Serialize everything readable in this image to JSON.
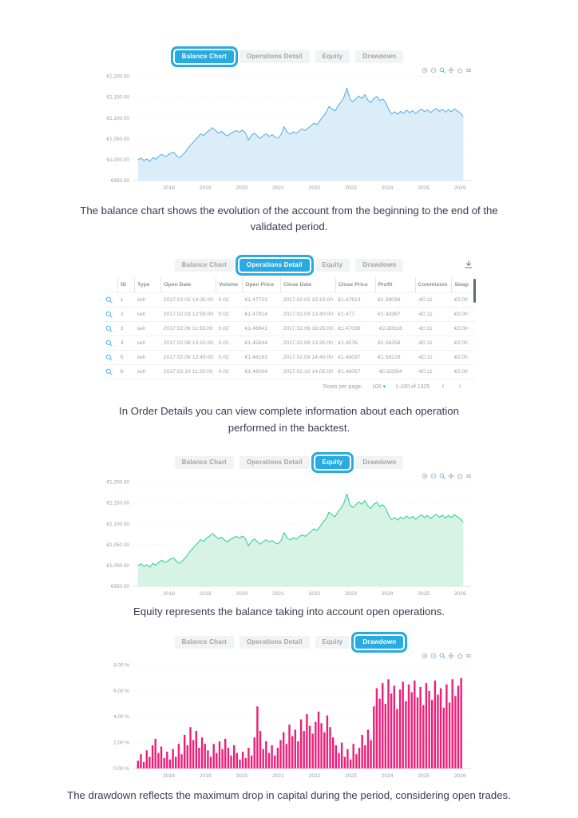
{
  "colors": {
    "accent_blue": "#29abe2",
    "balance_line": "#54aadf",
    "balance_fill": "#daedf9",
    "equity_line": "#2bcb8d",
    "equity_fill": "#d6f3e6",
    "drawdown_bar": "#ed1e79",
    "tab_inactive_bg": "#f2f3f4",
    "tab_inactive_text": "#9fa4a9",
    "caption_text": "#3b3951",
    "grid_line": "#e6e6e6"
  },
  "tabs": {
    "labels": [
      "Balance Chart",
      "Operations Detail",
      "Equity",
      "Drawdown"
    ]
  },
  "modebar": {
    "icons": [
      "zoom-in-icon",
      "zoom-out-icon",
      "magnifier-icon",
      "pan-icon",
      "home-icon",
      "menu-icon"
    ],
    "active": "magnifier-icon"
  },
  "sections": [
    {
      "kind": "chart",
      "chart": "balance",
      "selected_tab": 0,
      "caption": "The balance chart shows the evolution of the account from the beginning to the end of the validated period."
    },
    {
      "kind": "table",
      "selected_tab": 1,
      "caption": "In Order Details you can view complete information about each operation performed in the backtest."
    },
    {
      "kind": "chart",
      "chart": "equity",
      "selected_tab": 2,
      "caption": "Equity represents the balance taking into account open operations."
    },
    {
      "kind": "chart",
      "chart": "drawdown",
      "selected_tab": 3,
      "caption": "The drawdown reflects the maximum drop in capital during the period, considering open trades."
    }
  ],
  "table": {
    "columns": [
      "ID",
      "Type",
      "Open Date",
      "Volume",
      "Open Price",
      "Close Date",
      "Close Price",
      "Profit",
      "Commision",
      "Swap"
    ],
    "rows": [
      [
        "1",
        "sell",
        "2017.02.02 14:35:00",
        "0.02",
        "€1.47723",
        "2017.02.02 15:15:00",
        "€1.47613",
        "€1.38038",
        "-€0.11",
        "€0.00"
      ],
      [
        "2",
        "sell",
        "2017.02.03 12:55:00",
        "0.02",
        "€1.47814",
        "2017.02.03 13:40:00",
        "€1.477",
        "€1.43367",
        "-€0.11",
        "€0.00"
      ],
      [
        "3",
        "sell",
        "2017.02.06 11:55:00",
        "0.02",
        "€1.46841",
        "2017.02.06 18:25:00",
        "€1.47039",
        "-€2.80316",
        "-€0.11",
        "€0.00"
      ],
      [
        "4",
        "sell",
        "2017.02.08 13:15:00",
        "0.02",
        "€1.45844",
        "2017.02.08 13:35:00",
        "€1.4576",
        "€1.04258",
        "-€0.11",
        "€0.00"
      ],
      [
        "5",
        "sell",
        "2017.02.09 12:45:00",
        "0.02",
        "€1.48163",
        "2017.02.09 14:45:00",
        "€1.48037",
        "€1.59228",
        "-€0.11",
        "€0.00"
      ],
      [
        "6",
        "sell",
        "2017.02.10 11:25:00",
        "0.02",
        "€1.48004",
        "2017.02.10 14:05:00",
        "€1.48057",
        "-€0.82594",
        "-€0.11",
        "€0.00"
      ]
    ],
    "row_action_icon": "magnifier-icon",
    "download_icon": "download-icon",
    "pagination": {
      "rows_per_page_label": "Rows per page:",
      "rows_per_page_value": "100",
      "range_label": "1-100 of 1325",
      "prev_icon": "chevron-left-icon",
      "next_icon": "chevron-right-icon"
    }
  },
  "chart_data": [
    {
      "id": "balance",
      "type": "area",
      "title": "Balance Chart",
      "xlabel": "",
      "ylabel": "",
      "line_color": "#54aadf",
      "fill_color": "#daedf9",
      "x_start": 2017.15,
      "x_step": 0.082,
      "values": [
        1000,
        1004,
        998,
        1002,
        996,
        1005,
        1001,
        1008,
        1013,
        1007,
        1011,
        1016,
        1018,
        1009,
        1005,
        1012,
        1020,
        1030,
        1038,
        1046,
        1054,
        1062,
        1058,
        1066,
        1071,
        1077,
        1070,
        1064,
        1068,
        1061,
        1057,
        1063,
        1067,
        1070,
        1066,
        1071,
        1065,
        1047,
        1058,
        1064,
        1057,
        1051,
        1058,
        1062,
        1056,
        1060,
        1054,
        1052,
        1061,
        1079,
        1066,
        1061,
        1067,
        1063,
        1069,
        1074,
        1070,
        1076,
        1082,
        1088,
        1084,
        1094,
        1104,
        1113,
        1128,
        1122,
        1117,
        1129,
        1138,
        1150,
        1172,
        1146,
        1139,
        1146,
        1153,
        1147,
        1156,
        1143,
        1137,
        1147,
        1152,
        1142,
        1146,
        1138,
        1120,
        1110,
        1115,
        1109,
        1116,
        1112,
        1119,
        1113,
        1118,
        1111,
        1117,
        1122,
        1115,
        1120,
        1113,
        1119,
        1123,
        1116,
        1121,
        1114,
        1120,
        1115,
        1122,
        1117,
        1112,
        1104
      ],
      "xlim": [
        2017.0,
        2026.3
      ],
      "ylim": [
        950,
        1205
      ],
      "xticks": [
        2018,
        2019,
        2020,
        2021,
        2022,
        2023,
        2024,
        2025,
        2026
      ],
      "yticks": [
        950,
        1000,
        1050,
        1100,
        1150,
        1200
      ],
      "ytick_labels": [
        "€950.00",
        "€1,000.00",
        "€1,050.00",
        "€1,100.00",
        "€1,150.00",
        "€1,200.00"
      ],
      "grid": true,
      "legend": false
    },
    {
      "id": "equity",
      "type": "area",
      "title": "Equity",
      "xlabel": "",
      "ylabel": "",
      "line_color": "#2bcb8d",
      "fill_color": "#d6f3e6",
      "x_start": 2017.15,
      "x_step": 0.082,
      "values": [
        1000,
        1004,
        998,
        1002,
        996,
        1005,
        1001,
        1008,
        1013,
        1007,
        1011,
        1016,
        1018,
        1009,
        1005,
        1012,
        1020,
        1030,
        1038,
        1046,
        1054,
        1062,
        1058,
        1066,
        1071,
        1077,
        1070,
        1064,
        1068,
        1061,
        1057,
        1063,
        1067,
        1070,
        1066,
        1071,
        1065,
        1047,
        1058,
        1064,
        1057,
        1051,
        1058,
        1062,
        1056,
        1060,
        1054,
        1052,
        1061,
        1079,
        1066,
        1061,
        1067,
        1063,
        1069,
        1074,
        1070,
        1076,
        1082,
        1088,
        1084,
        1094,
        1104,
        1113,
        1128,
        1122,
        1117,
        1129,
        1138,
        1150,
        1172,
        1146,
        1139,
        1146,
        1153,
        1147,
        1156,
        1143,
        1137,
        1147,
        1152,
        1142,
        1146,
        1138,
        1120,
        1110,
        1115,
        1109,
        1116,
        1112,
        1119,
        1113,
        1118,
        1111,
        1117,
        1122,
        1115,
        1120,
        1113,
        1119,
        1123,
        1116,
        1121,
        1114,
        1120,
        1115,
        1122,
        1117,
        1112,
        1104
      ],
      "xlim": [
        2017.0,
        2026.3
      ],
      "ylim": [
        950,
        1205
      ],
      "xticks": [
        2018,
        2019,
        2020,
        2021,
        2022,
        2023,
        2024,
        2025,
        2026
      ],
      "yticks": [
        950,
        1000,
        1050,
        1100,
        1150,
        1200
      ],
      "ytick_labels": [
        "€950.00",
        "€1,000.00",
        "€1,050.00",
        "€1,100.00",
        "€1,150.00",
        "€1,200.00"
      ],
      "grid": true,
      "legend": false
    },
    {
      "id": "drawdown",
      "type": "bar",
      "title": "Drawdown",
      "xlabel": "",
      "ylabel": "",
      "bar_color": "#ed1e79",
      "x_start": 2017.15,
      "x_step": 0.08,
      "values": [
        0.6,
        1.1,
        0.5,
        1.4,
        0.9,
        1.8,
        2.3,
        1.2,
        1.7,
        0.8,
        1.3,
        0.7,
        1.5,
        0.9,
        1.9,
        1.1,
        2.6,
        1.8,
        3.2,
        2.2,
        2.9,
        1.6,
        2.4,
        1.9,
        1.4,
        0.9,
        1.9,
        1.2,
        2.1,
        1.5,
        2.3,
        1.6,
        1.0,
        1.8,
        1.2,
        0.7,
        1.3,
        0.8,
        1.6,
        1.0,
        2.4,
        4.8,
        2.9,
        1.5,
        2.1,
        1.2,
        1.8,
        1.0,
        1.6,
        2.2,
        2.8,
        1.9,
        3.4,
        2.5,
        3.0,
        2.1,
        3.8,
        2.9,
        4.2,
        3.3,
        2.7,
        3.6,
        4.4,
        3.5,
        2.8,
        4.1,
        3.2,
        2.4,
        1.8,
        1.2,
        2.0,
        0.9,
        1.5,
        0.7,
        1.9,
        1.1,
        1.6,
        2.6,
        1.8,
        3.0,
        2.2,
        4.8,
        6.2,
        5.4,
        6.6,
        5.0,
        6.9,
        5.8,
        6.4,
        4.6,
        6.1,
        6.7,
        5.2,
        6.5,
        5.9,
        6.8,
        5.5,
        6.3,
        4.9,
        6.6,
        6.0,
        5.3,
        6.8,
        5.7,
        6.2,
        4.7,
        6.5,
        5.1,
        6.9,
        5.6,
        6.4,
        7.0
      ],
      "xlim": [
        2017.0,
        2026.3
      ],
      "ylim": [
        0,
        8.4
      ],
      "xticks": [
        2018,
        2019,
        2020,
        2021,
        2022,
        2023,
        2024,
        2025,
        2026
      ],
      "yticks": [
        0,
        2,
        4,
        6,
        8
      ],
      "ytick_labels": [
        "0.00 %",
        "2.00 %",
        "4.00 %",
        "6.00 %",
        "8.00 %"
      ],
      "grid": true,
      "legend": false
    }
  ]
}
